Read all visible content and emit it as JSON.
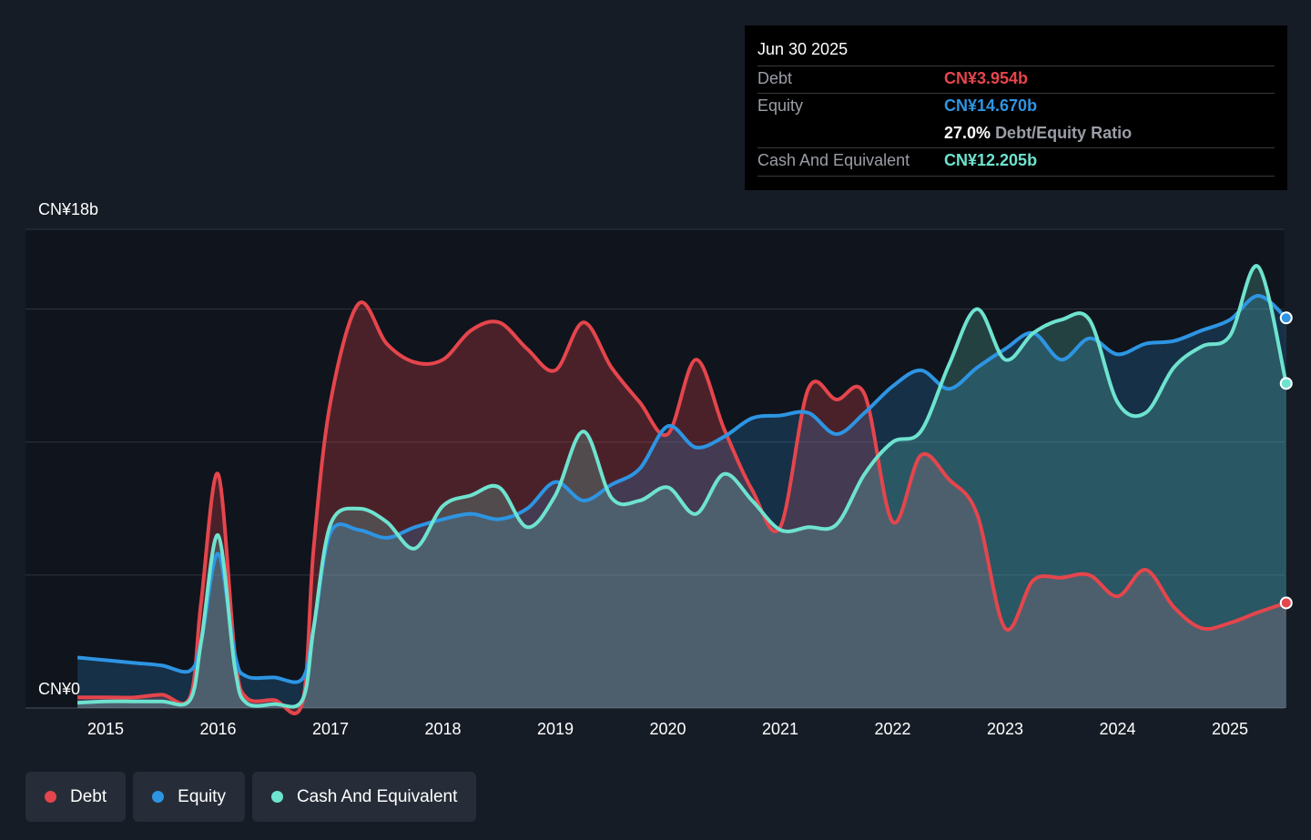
{
  "chart_data": {
    "type": "area",
    "ylim": [
      0,
      18
    ],
    "y_ticks": [
      0,
      18
    ],
    "y_tick_labels": [
      "CN¥0",
      "CN¥18b"
    ],
    "x_tick_labels": [
      "2015",
      "2016",
      "2017",
      "2018",
      "2019",
      "2020",
      "2021",
      "2022",
      "2023",
      "2024",
      "2025"
    ],
    "x_ticks": [
      2015,
      2016,
      2017,
      2018,
      2019,
      2020,
      2021,
      2022,
      2023,
      2024,
      2025
    ],
    "xlim": [
      2014.3,
      2025.5
    ],
    "grid": true,
    "legend_position": "bottom-left",
    "series": [
      {
        "name": "Debt",
        "color": "#e5454c",
        "x": [
          2014.75,
          2015.0,
          2015.25,
          2015.5,
          2015.75,
          2015.85,
          2016.0,
          2016.15,
          2016.25,
          2016.5,
          2016.75,
          2016.85,
          2017.0,
          2017.25,
          2017.5,
          2017.75,
          2018.0,
          2018.25,
          2018.5,
          2018.75,
          2019.0,
          2019.25,
          2019.5,
          2019.75,
          2020.0,
          2020.25,
          2020.5,
          2020.75,
          2021.0,
          2021.25,
          2021.5,
          2021.75,
          2022.0,
          2022.25,
          2022.5,
          2022.75,
          2023.0,
          2023.25,
          2023.5,
          2023.75,
          2024.0,
          2024.25,
          2024.5,
          2024.75,
          2025.0,
          2025.25,
          2025.5
        ],
        "values": [
          0.4,
          0.4,
          0.4,
          0.5,
          0.4,
          4.0,
          8.8,
          2.0,
          0.4,
          0.3,
          0.2,
          6.0,
          11.5,
          15.2,
          13.7,
          13.0,
          13.1,
          14.2,
          14.5,
          13.5,
          12.7,
          14.5,
          12.8,
          11.5,
          10.3,
          13.1,
          10.5,
          8.2,
          6.8,
          12.0,
          11.6,
          11.8,
          7.0,
          9.5,
          8.6,
          7.3,
          3.0,
          4.8,
          4.9,
          5.0,
          4.2,
          5.2,
          3.8,
          3.0,
          3.2,
          3.6,
          3.954
        ]
      },
      {
        "name": "Equity",
        "color": "#2d95e3",
        "x": [
          2014.75,
          2015.0,
          2015.25,
          2015.5,
          2015.75,
          2015.85,
          2016.0,
          2016.15,
          2016.25,
          2016.5,
          2016.75,
          2016.85,
          2017.0,
          2017.25,
          2017.5,
          2017.75,
          2018.0,
          2018.25,
          2018.5,
          2018.75,
          2019.0,
          2019.25,
          2019.5,
          2019.75,
          2020.0,
          2020.25,
          2020.5,
          2020.75,
          2021.0,
          2021.25,
          2021.5,
          2021.75,
          2022.0,
          2022.25,
          2022.5,
          2022.75,
          2023.0,
          2023.25,
          2023.5,
          2023.75,
          2024.0,
          2024.25,
          2024.5,
          2024.75,
          2025.0,
          2025.25,
          2025.5
        ],
        "values": [
          1.9,
          1.8,
          1.7,
          1.6,
          1.4,
          2.5,
          5.8,
          2.0,
          1.2,
          1.15,
          1.1,
          3.0,
          6.6,
          6.7,
          6.4,
          6.8,
          7.1,
          7.3,
          7.1,
          7.5,
          8.5,
          7.8,
          8.4,
          9.0,
          10.6,
          9.8,
          10.2,
          10.9,
          11.0,
          11.1,
          10.3,
          11.1,
          12.1,
          12.7,
          12.0,
          12.8,
          13.5,
          14.1,
          13.1,
          13.9,
          13.3,
          13.7,
          13.8,
          14.2,
          14.6,
          15.5,
          14.67
        ]
      },
      {
        "name": "Cash And Equivalent",
        "color": "#6ee3cf",
        "x": [
          2014.75,
          2015.0,
          2015.25,
          2015.5,
          2015.75,
          2015.85,
          2016.0,
          2016.15,
          2016.25,
          2016.5,
          2016.75,
          2016.85,
          2017.0,
          2017.25,
          2017.5,
          2017.75,
          2018.0,
          2018.25,
          2018.5,
          2018.75,
          2019.0,
          2019.25,
          2019.5,
          2019.75,
          2020.0,
          2020.25,
          2020.5,
          2020.75,
          2021.0,
          2021.25,
          2021.5,
          2021.75,
          2022.0,
          2022.25,
          2022.5,
          2022.75,
          2023.0,
          2023.25,
          2023.5,
          2023.75,
          2024.0,
          2024.25,
          2024.5,
          2024.75,
          2025.0,
          2025.25,
          2025.5
        ],
        "values": [
          0.2,
          0.25,
          0.25,
          0.25,
          0.3,
          2.5,
          6.5,
          1.5,
          0.2,
          0.15,
          0.3,
          3.0,
          6.9,
          7.5,
          7.0,
          6.0,
          7.6,
          8.0,
          8.3,
          6.8,
          8.0,
          10.4,
          7.9,
          7.8,
          8.3,
          7.3,
          8.8,
          7.8,
          6.7,
          6.8,
          6.9,
          8.8,
          10.0,
          10.4,
          12.9,
          15.0,
          13.1,
          14.1,
          14.6,
          14.6,
          11.5,
          11.1,
          12.8,
          13.6,
          14.0,
          16.6,
          12.205
        ]
      }
    ]
  },
  "tooltip": {
    "date": "Jun 30 2025",
    "debt_label": "Debt",
    "debt_value": "CN¥3.954b",
    "equity_label": "Equity",
    "equity_value": "CN¥14.670b",
    "ratio_value": "27.0%",
    "ratio_label": "Debt/Equity Ratio",
    "cash_label": "Cash And Equivalent",
    "cash_value": "CN¥12.205b"
  },
  "legend": {
    "debt": "Debt",
    "equity": "Equity",
    "cash": "Cash And Equivalent"
  },
  "colors": {
    "debt": "#e5454c",
    "equity": "#2d95e3",
    "cash": "#6ee3cf"
  }
}
